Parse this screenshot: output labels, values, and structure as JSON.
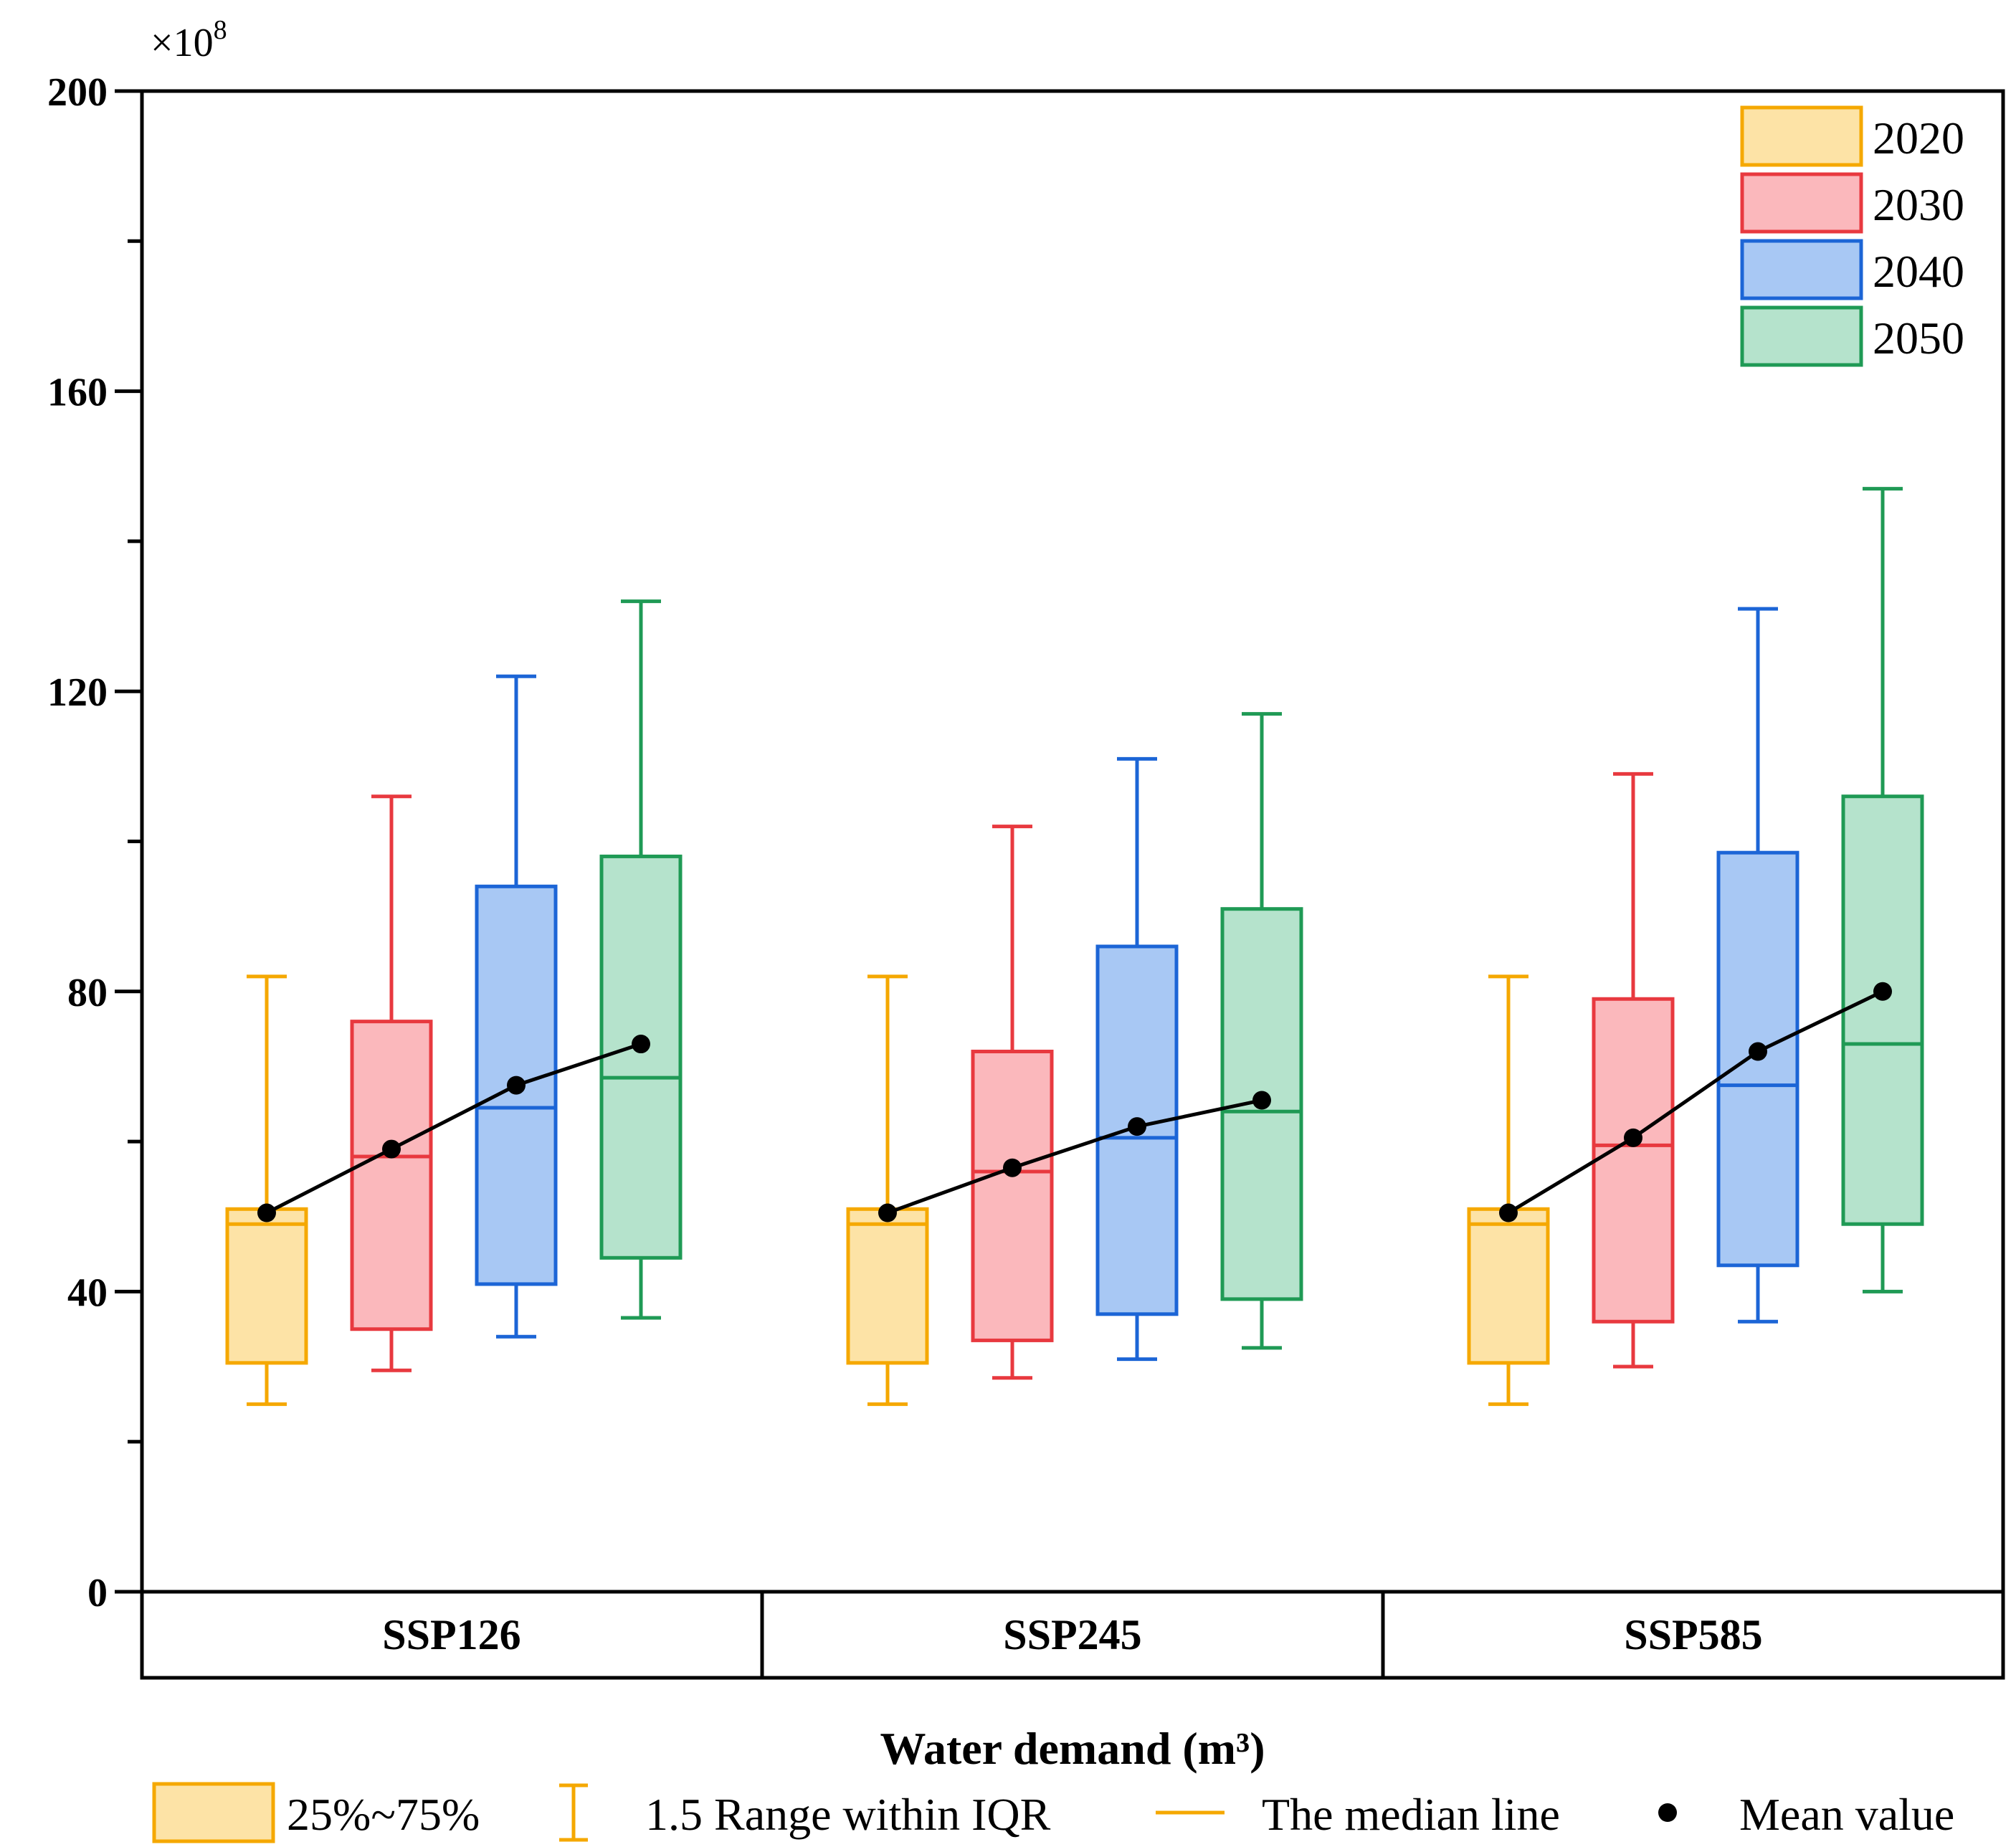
{
  "chart_data": {
    "type": "box",
    "multiplier": "×10",
    "multiplier_exponent": "8",
    "xlabel": "Water demand (m³)",
    "ylim": [
      0,
      200
    ],
    "yticks": [
      0,
      40,
      80,
      120,
      160,
      200
    ],
    "yticks_labels": [
      "0",
      "40",
      "80",
      "120",
      "160",
      "200"
    ],
    "groups": [
      "SSP126",
      "SSP245",
      "SSP585"
    ],
    "series": [
      {
        "name": "2020",
        "stroke": "#f5a800",
        "fill": "#fde3a6"
      },
      {
        "name": "2030",
        "stroke": "#e8393f",
        "fill": "#fbb8bc"
      },
      {
        "name": "2040",
        "stroke": "#1c65d6",
        "fill": "#a8c8f4"
      },
      {
        "name": "2050",
        "stroke": "#1f9a55",
        "fill": "#b5e3cc"
      }
    ],
    "boxes": [
      [
        {
          "min": 25,
          "q1": 30.5,
          "median": 49,
          "q3": 51,
          "max": 82,
          "mean": 50.5
        },
        {
          "min": 29.5,
          "q1": 35,
          "median": 58,
          "q3": 76,
          "max": 106,
          "mean": 59
        },
        {
          "min": 34,
          "q1": 41,
          "median": 64.5,
          "q3": 94,
          "max": 122,
          "mean": 67.5
        },
        {
          "min": 36.5,
          "q1": 44.5,
          "median": 68.5,
          "q3": 98,
          "max": 132,
          "mean": 73
        }
      ],
      [
        {
          "min": 25,
          "q1": 30.5,
          "median": 49,
          "q3": 51,
          "max": 82,
          "mean": 50.5
        },
        {
          "min": 28.5,
          "q1": 33.5,
          "median": 56,
          "q3": 72,
          "max": 102,
          "mean": 56.5
        },
        {
          "min": 31,
          "q1": 37,
          "median": 60.5,
          "q3": 86,
          "max": 111,
          "mean": 62
        },
        {
          "min": 32.5,
          "q1": 39,
          "median": 64,
          "q3": 91,
          "max": 117,
          "mean": 65.5
        }
      ],
      [
        {
          "min": 25,
          "q1": 30.5,
          "median": 49,
          "q3": 51,
          "max": 82,
          "mean": 50.5
        },
        {
          "min": 30,
          "q1": 36,
          "median": 59.5,
          "q3": 79,
          "max": 109,
          "mean": 60.5
        },
        {
          "min": 36,
          "q1": 43.5,
          "median": 67.5,
          "q3": 98.5,
          "max": 131,
          "mean": 72
        },
        {
          "min": 40,
          "q1": 49,
          "median": 73,
          "q3": 106,
          "max": 147,
          "mean": 80
        }
      ]
    ]
  },
  "key": {
    "box_label": "25%~75%",
    "range_label": "1.5 Range within IQR",
    "median_label": "The median line",
    "mean_label": "Mean value",
    "key_stroke": "#f5a800",
    "key_fill": "#fde3a6"
  }
}
